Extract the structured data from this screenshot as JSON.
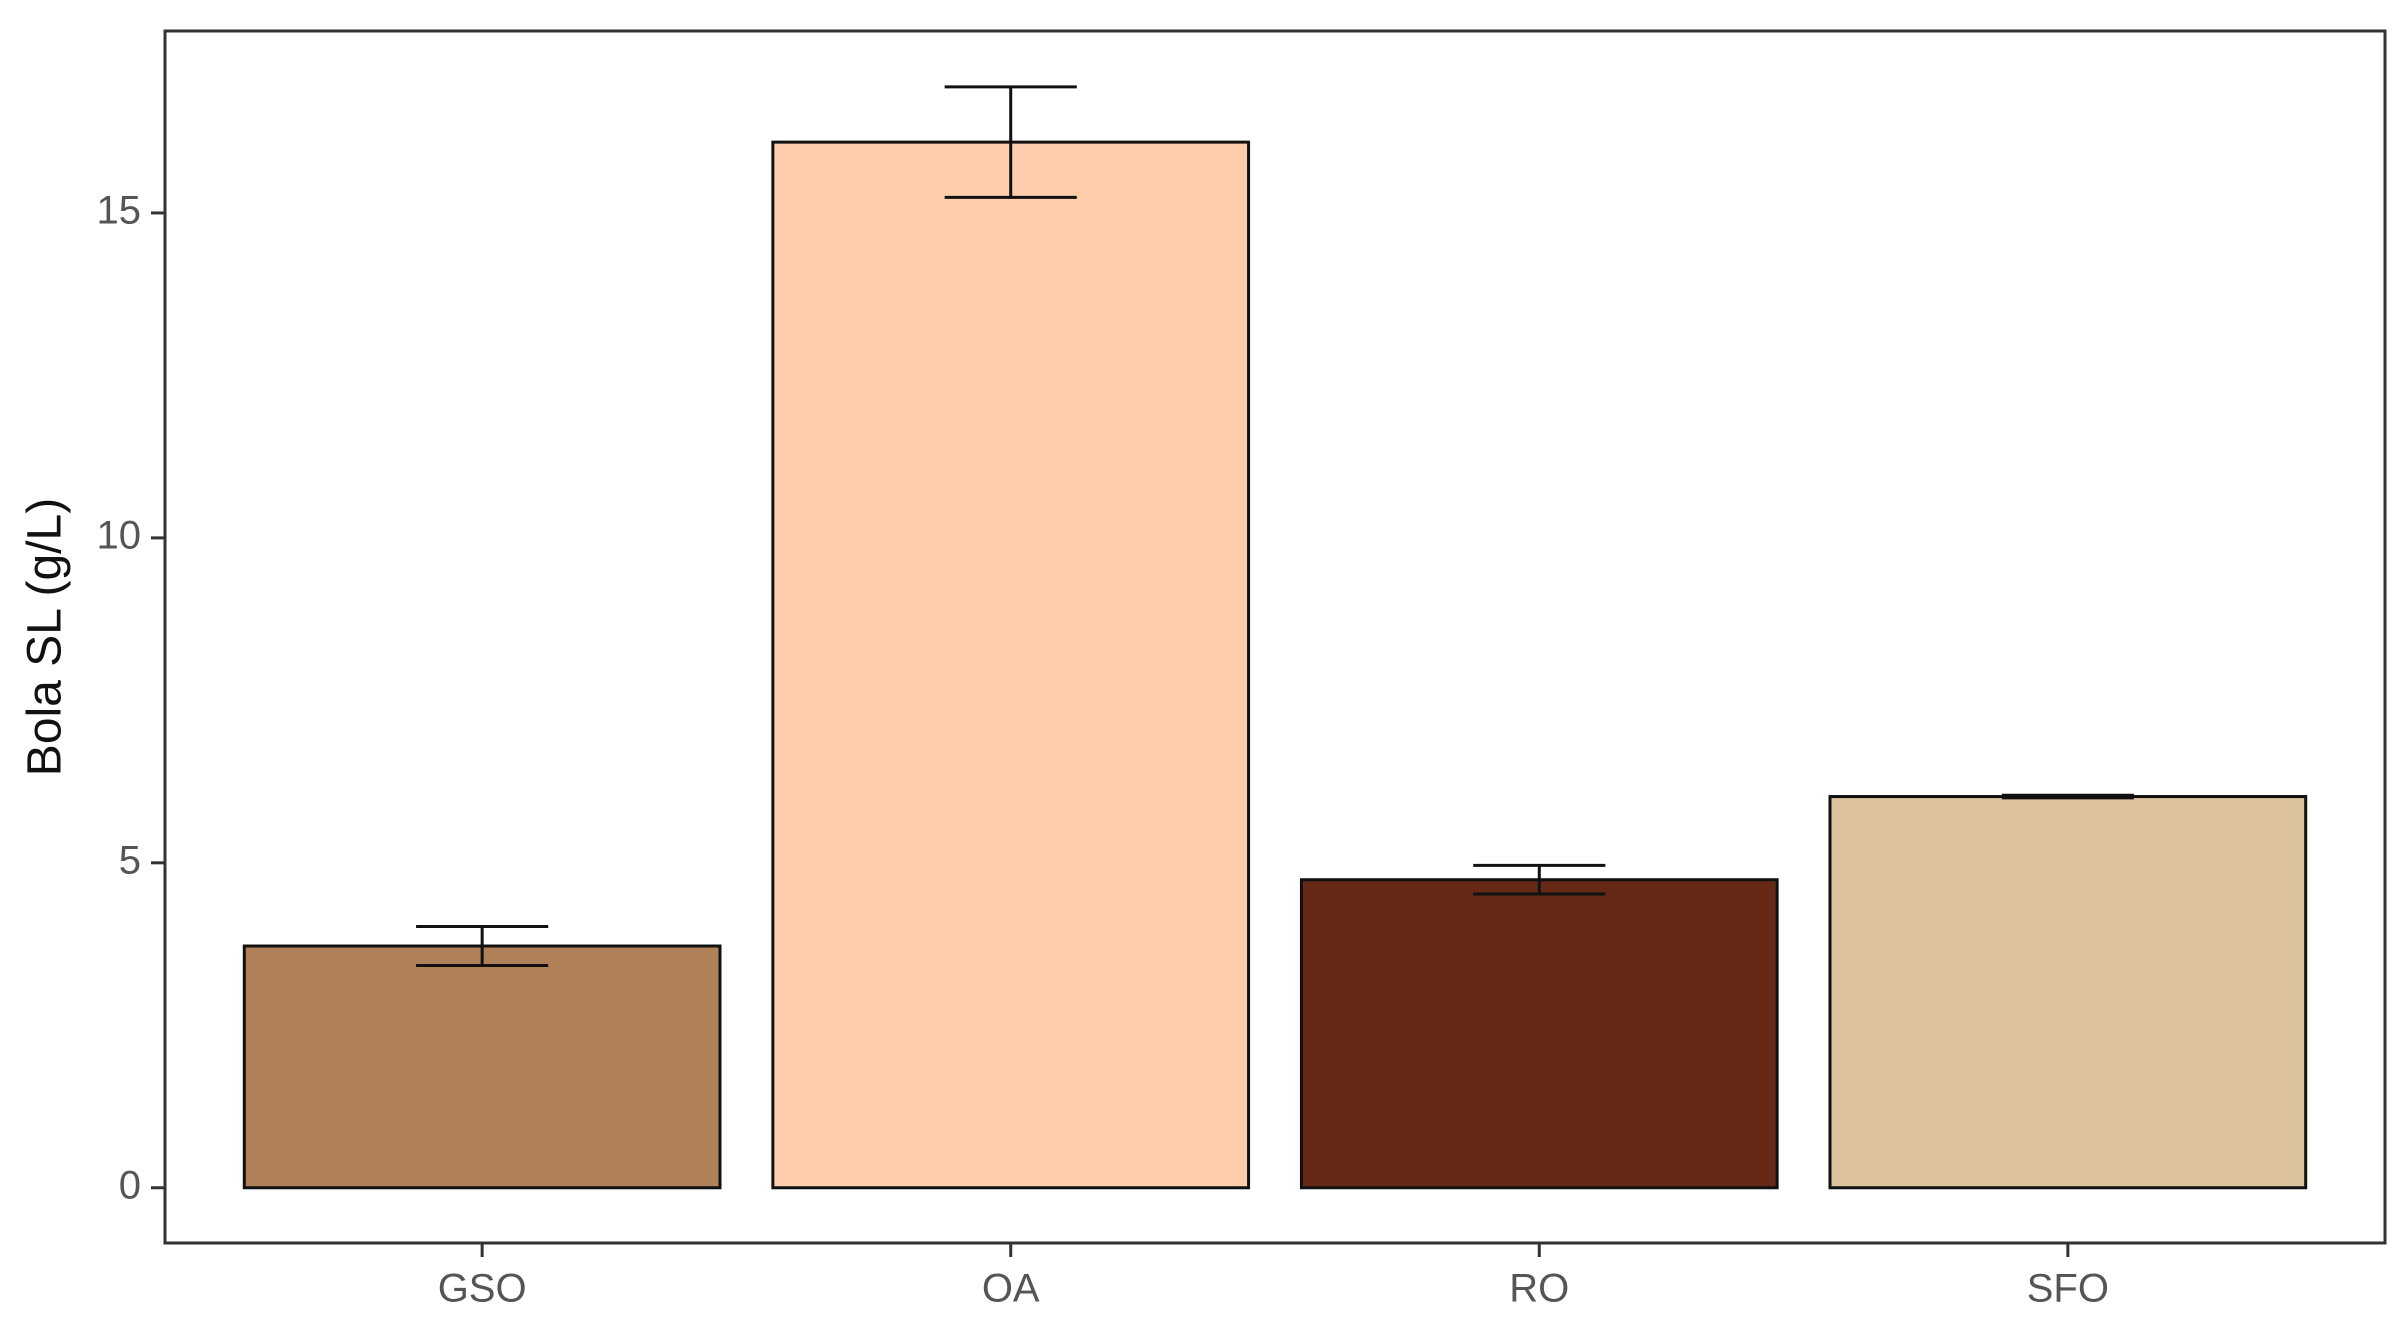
{
  "chart_data": {
    "type": "bar",
    "y_label": "Bola SL (g/L)",
    "categories": [
      "GSO",
      "OA",
      "RO",
      "SFO"
    ],
    "values": [
      3.72,
      16.09,
      4.74,
      6.02
    ],
    "errors": [
      0.3,
      0.85,
      0.22,
      0.02
    ],
    "colors": [
      "#b08158",
      "#fdcdac",
      "#662915",
      "#dbc19c"
    ],
    "ylim": [
      -0.85,
      17.8
    ],
    "yticks": [
      0,
      5,
      10,
      15
    ],
    "grid": false
  }
}
